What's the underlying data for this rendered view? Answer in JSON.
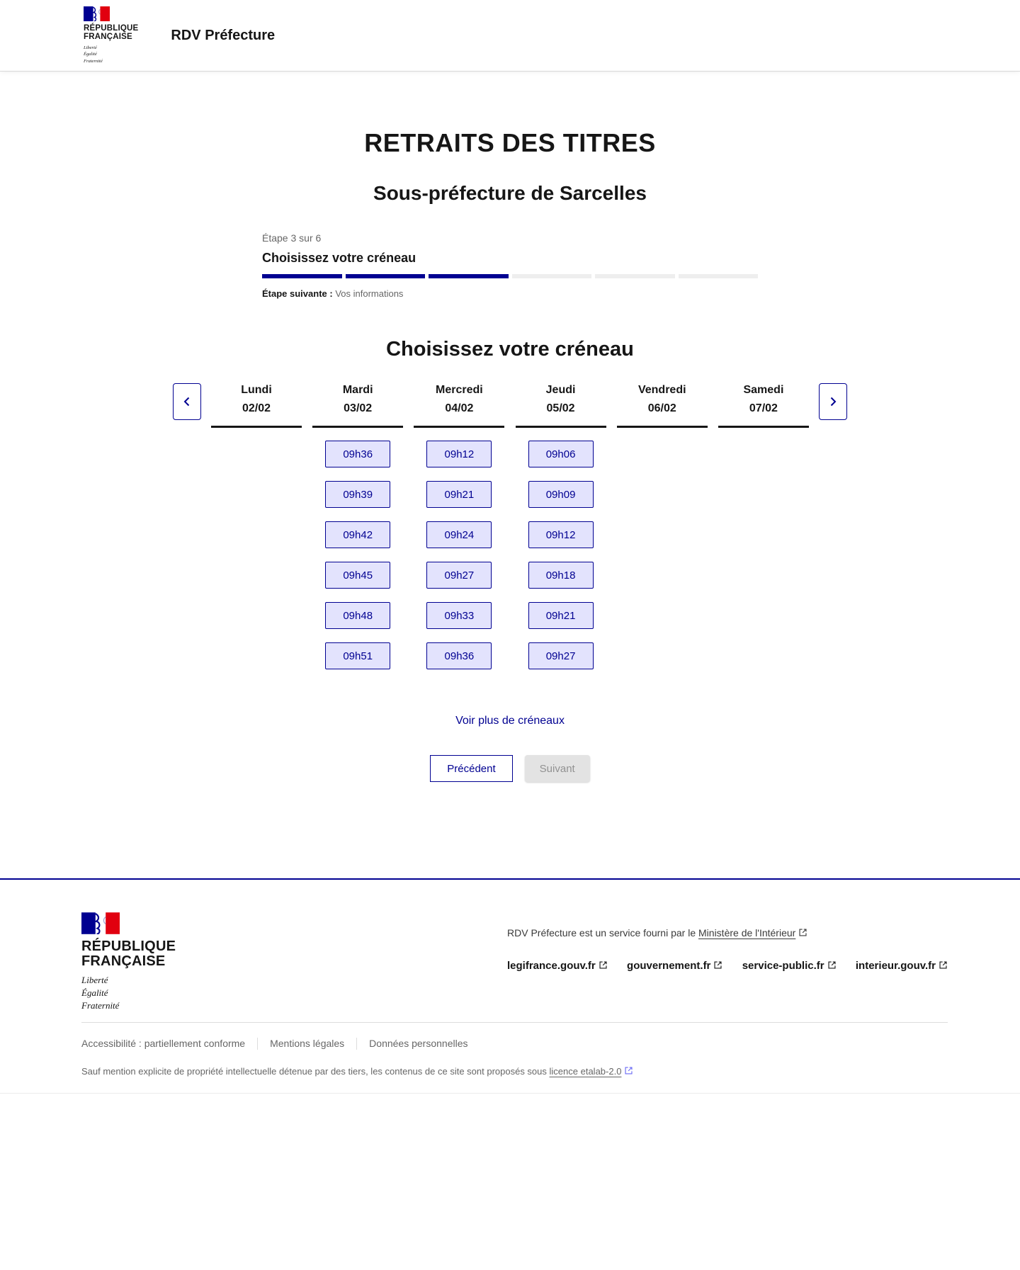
{
  "brand": {
    "republic": "RÉPUBLIQUE\nFRANÇAISE",
    "motto": "Liberté\nÉgalité\nFraternité"
  },
  "header": {
    "service_title": "RDV Préfecture"
  },
  "main": {
    "title": "RETRAITS DES TITRES",
    "subtitle": "Sous-préfecture de Sarcelles",
    "stepper": {
      "step_label": "Étape 3 sur 6",
      "step_title": "Choisissez votre créneau",
      "current_step": 3,
      "total_steps": 6,
      "next_step_label": "Étape suivante :",
      "next_step_value": "Vos informations"
    },
    "section_title": "Choisissez votre créneau",
    "calendar": {
      "prev_icon": "chevron-left",
      "next_icon": "chevron-right",
      "days": [
        {
          "name": "Lundi",
          "date": "02/02",
          "slots": []
        },
        {
          "name": "Mardi",
          "date": "03/02",
          "slots": [
            "09h36",
            "09h39",
            "09h42",
            "09h45",
            "09h48",
            "09h51"
          ]
        },
        {
          "name": "Mercredi",
          "date": "04/02",
          "slots": [
            "09h12",
            "09h21",
            "09h24",
            "09h27",
            "09h33",
            "09h36"
          ]
        },
        {
          "name": "Jeudi",
          "date": "05/02",
          "slots": [
            "09h06",
            "09h09",
            "09h12",
            "09h18",
            "09h21",
            "09h27"
          ]
        },
        {
          "name": "Vendredi",
          "date": "06/02",
          "slots": []
        },
        {
          "name": "Samedi",
          "date": "07/02",
          "slots": []
        }
      ]
    },
    "more_slots_link": "Voir plus de créneaux",
    "previous_button": "Précédent",
    "next_button": "Suivant"
  },
  "footer": {
    "service_sentence": "RDV Préfecture est un service fourni par le",
    "service_link": "Ministère de l'Intérieur",
    "gov_links": [
      "legifrance.gouv.fr",
      "gouvernement.fr",
      "service-public.fr",
      "interieur.gouv.fr"
    ],
    "bottom_links": [
      "Accessibilité : partiellement conforme",
      "Mentions légales",
      "Données personnelles"
    ],
    "license_text": "Sauf mention explicite de propriété intellectuelle détenue par des tiers, les contenus de ce site sont proposés sous",
    "license_link": "licence etalab-2.0"
  },
  "colors": {
    "primary_blue": "#000091",
    "flag_red": "#e1000f",
    "slot_background": "#e3e3fd",
    "slot_text": "#000091",
    "disabled_background": "#e3e3e3",
    "disabled_text": "#929292",
    "muted_text": "#666666",
    "progress_empty": "#eeeeee"
  }
}
